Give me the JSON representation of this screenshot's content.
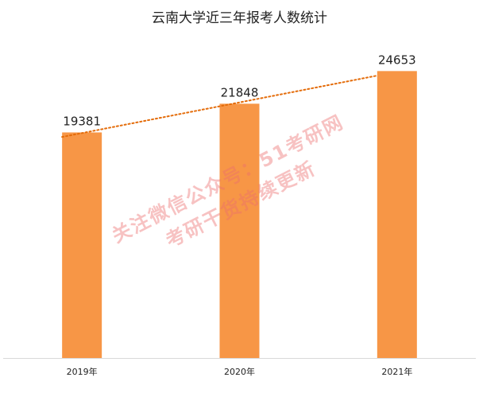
{
  "chart_data": {
    "type": "bar",
    "title": "云南大学近三年报考人数统计",
    "categories": [
      "2019年",
      "2020年",
      "2021年"
    ],
    "values": [
      19381,
      21848,
      24653
    ],
    "ylim": [
      0,
      27000
    ],
    "grid": false,
    "legend": "none",
    "trendline": "linear",
    "bar_color": "#F79646",
    "trend_color": "#E46C0A"
  },
  "watermark": {
    "line1": "关注微信公众号：51考研网",
    "line2": "考研干货持续更新"
  }
}
